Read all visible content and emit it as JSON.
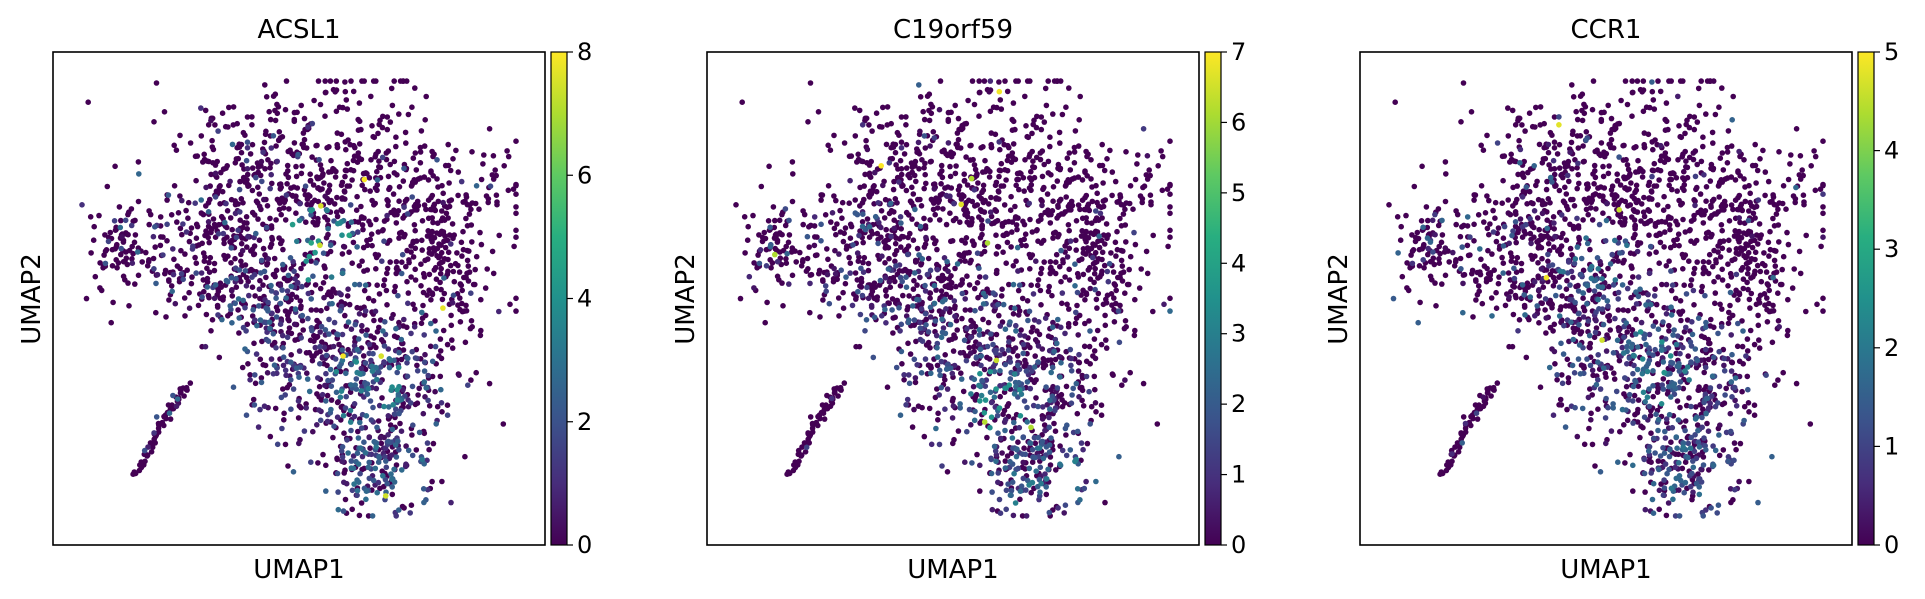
{
  "chart_data": [
    {
      "type": "scatter",
      "title": "ACSL1",
      "xlabel": "UMAP1",
      "ylabel": "UMAP2",
      "grid": false,
      "colormap": "viridis",
      "colorbar": {
        "min": 0,
        "max": 8,
        "ticks": [
          "0",
          "2",
          "4",
          "6",
          "8"
        ]
      },
      "hotspots": [
        {
          "x": 0.55,
          "y": 0.62,
          "level": 0.45
        },
        {
          "x": 0.65,
          "y": 0.3,
          "level": 0.38
        },
        {
          "x": 0.7,
          "y": 0.1,
          "level": 0.32
        }
      ]
    },
    {
      "type": "scatter",
      "title": "C19orf59",
      "xlabel": "UMAP1",
      "ylabel": "UMAP2",
      "grid": false,
      "colormap": "viridis",
      "colorbar": {
        "min": 0,
        "max": 7,
        "ticks": [
          "0",
          "1",
          "2",
          "3",
          "4",
          "5",
          "6",
          "7"
        ]
      },
      "hotspots": [
        {
          "x": 0.6,
          "y": 0.25,
          "level": 0.4
        },
        {
          "x": 0.7,
          "y": 0.1,
          "level": 0.35
        }
      ]
    },
    {
      "type": "scatter",
      "title": "CCR1",
      "xlabel": "UMAP1",
      "ylabel": "UMAP2",
      "grid": false,
      "colormap": "viridis",
      "colorbar": {
        "min": 0,
        "max": 5,
        "ticks": [
          "0",
          "1",
          "2",
          "3",
          "4",
          "5"
        ]
      },
      "hotspots": [
        {
          "x": 0.62,
          "y": 0.35,
          "level": 0.4
        },
        {
          "x": 0.48,
          "y": 0.58,
          "level": 0.3
        },
        {
          "x": 0.68,
          "y": 0.12,
          "level": 0.32
        }
      ]
    }
  ]
}
